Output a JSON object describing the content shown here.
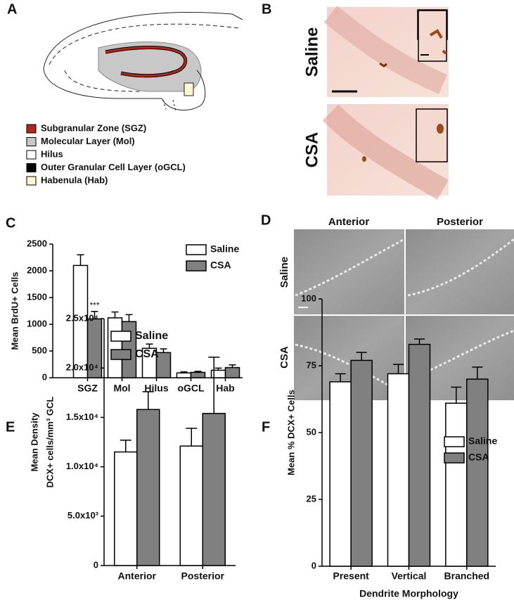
{
  "panels": [
    "A",
    "B",
    "C",
    "D",
    "E",
    "F"
  ],
  "diagram_legend": [
    {
      "label": "Subgranular Zone (SGZ)",
      "color": "#b0281a"
    },
    {
      "label": "Molecular Layer (Mol)",
      "color": "#c8c8c8"
    },
    {
      "label": "Hilus",
      "color": "#ffffff"
    },
    {
      "label": "Outer Granular Cell Layer (oGCL)",
      "color": "#000000"
    },
    {
      "label": "Habenula (Hab)",
      "color": "#fdf8d2"
    }
  ],
  "micrograph_b_rows": [
    "Saline",
    "CSA"
  ],
  "micrograph_d_columns": [
    "Anterior",
    "Posterior"
  ],
  "micrograph_d_rows": [
    "Saline",
    "CSA"
  ],
  "chart_data": [
    {
      "type": "bar",
      "ylabel": [
        "Mean BrdU+ Cells"
      ],
      "categories": [
        "SGZ",
        "Mol",
        "Hilus",
        "oGCL",
        "Hab"
      ],
      "series": [
        {
          "name": "Saline",
          "color": "#ffffff",
          "values": [
            2100,
            1120,
            550,
            90,
            140
          ],
          "errors": [
            200,
            110,
            80,
            20,
            40
          ]
        },
        {
          "name": "CSA",
          "color": "#808080",
          "values": [
            1100,
            1050,
            470,
            100,
            190
          ],
          "errors": [
            140,
            130,
            70,
            20,
            50
          ]
        }
      ],
      "annotation": "***",
      "ylim": [
        0,
        2500
      ],
      "yticks": [
        0,
        500,
        1000,
        1500,
        2000,
        2500
      ]
    },
    {
      "type": "bar",
      "ylabel": [
        "Mean Density",
        "DCX+ cells/mm³ GCL"
      ],
      "categories": [
        "Anterior",
        "Posterior"
      ],
      "series": [
        {
          "name": "Saline",
          "color": "#ffffff",
          "values": [
            11500,
            12100
          ],
          "errors": [
            1200,
            1800
          ]
        },
        {
          "name": "CSA",
          "color": "#808080",
          "values": [
            15800,
            15400
          ],
          "errors": [
            1800,
            5700
          ]
        }
      ],
      "ylim": [
        0,
        25000
      ],
      "yticks": [
        0,
        {
          "value": 5000,
          "label": "5.0x10³"
        },
        {
          "value": 10000,
          "label": "1.0x10⁴"
        },
        {
          "value": 15000,
          "label": "1.5x10⁴"
        },
        {
          "value": 20000,
          "label": "2.0x10⁴"
        },
        {
          "value": 25000,
          "label": "2.5x10⁴"
        }
      ]
    },
    {
      "type": "bar",
      "ylabel": [
        "Mean % DCX+ Cells"
      ],
      "xlabel": "Dendrite Morphology",
      "categories": [
        "Present",
        "Vertical",
        "Branched"
      ],
      "series": [
        {
          "name": "Saline",
          "color": "#ffffff",
          "values": [
            69,
            72,
            61
          ],
          "errors": [
            3,
            3.5,
            6
          ]
        },
        {
          "name": "CSA",
          "color": "#808080",
          "values": [
            77,
            83,
            70
          ],
          "errors": [
            3,
            2,
            4.5
          ]
        }
      ],
      "ylim": [
        0,
        100
      ],
      "yticks": [
        0,
        25,
        50,
        75,
        100
      ]
    }
  ]
}
